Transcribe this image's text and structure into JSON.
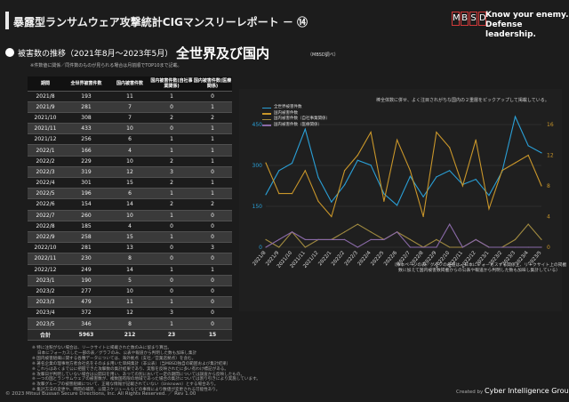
{
  "header": {
    "title": "暴露型ランサムウェア攻撃統計CIGマンスリーレポート － ⑭",
    "logo_letters": [
      "M",
      "B",
      "S",
      "D"
    ],
    "tagline_1": "Know your enemy.",
    "tagline_2": "Defense leadership."
  },
  "section": {
    "heading": "被害数の推移（2021年8月～2023年5月）",
    "heading_big": "全世界及び国内",
    "heading_small": "（MBSD調べ）",
    "note": "※件数値に関係／同件数のものが見られる場合は月前順でTOP10まで記載。"
  },
  "table": {
    "headers": [
      "期間",
      "全世界被害件数",
      "国内被害件数",
      "国内被害件数(自社事業関係)",
      "国内被害件数(医療関係)"
    ],
    "rows": [
      [
        "2021/8",
        "193",
        "11",
        "1",
        "0"
      ],
      [
        "2021/9",
        "281",
        "7",
        "0",
        "1"
      ],
      [
        "2021/10",
        "308",
        "7",
        "2",
        "2"
      ],
      [
        "2021/11",
        "433",
        "10",
        "0",
        "1"
      ],
      [
        "2021/12",
        "256",
        "6",
        "1",
        "1"
      ],
      [
        "2022/1",
        "166",
        "4",
        "1",
        "1"
      ],
      [
        "2022/2",
        "229",
        "10",
        "2",
        "1"
      ],
      [
        "2022/3",
        "319",
        "12",
        "3",
        "0"
      ],
      [
        "2022/4",
        "301",
        "15",
        "2",
        "1"
      ],
      [
        "2022/5",
        "196",
        "6",
        "1",
        "1"
      ],
      [
        "2022/6",
        "154",
        "14",
        "2",
        "2"
      ],
      [
        "2022/7",
        "260",
        "10",
        "1",
        "0"
      ],
      [
        "2022/8",
        "185",
        "4",
        "0",
        "0"
      ],
      [
        "2022/9",
        "258",
        "15",
        "1",
        "0"
      ],
      [
        "2022/10",
        "281",
        "13",
        "0",
        "3"
      ],
      [
        "2022/11",
        "230",
        "8",
        "0",
        "0"
      ],
      [
        "2022/12",
        "249",
        "14",
        "1",
        "1"
      ],
      [
        "2023/1",
        "190",
        "5",
        "0",
        "0"
      ],
      [
        "2023/2",
        "277",
        "10",
        "0",
        "0"
      ],
      [
        "2023/3",
        "479",
        "11",
        "1",
        "0"
      ],
      [
        "2023/4",
        "372",
        "12",
        "3",
        "0"
      ],
      [
        "2023/5",
        "346",
        "8",
        "1",
        "0"
      ]
    ],
    "total": [
      "合計",
      "5963",
      "212",
      "23",
      "15"
    ]
  },
  "chart_data": {
    "type": "line",
    "x": [
      "2021/8",
      "2021/9",
      "2021/10",
      "2021/11",
      "2021/12",
      "2022/1",
      "2022/2",
      "2022/3",
      "2022/4",
      "2022/5",
      "2022/6",
      "2022/7",
      "2022/8",
      "2022/9",
      "2022/10",
      "2022/11",
      "2022/12",
      "2023/1",
      "2023/2",
      "2023/3",
      "2023/4",
      "2023/5"
    ],
    "series": [
      {
        "name": "全世界被害件数",
        "axis": "left",
        "color": "#2a9fd6",
        "values": [
          193,
          281,
          308,
          433,
          256,
          166,
          229,
          319,
          301,
          196,
          154,
          260,
          185,
          258,
          281,
          230,
          249,
          190,
          277,
          479,
          372,
          346
        ]
      },
      {
        "name": "国内被害件数",
        "axis": "right",
        "color": "#c9962a",
        "values": [
          11,
          7,
          7,
          10,
          6,
          4,
          10,
          12,
          15,
          6,
          14,
          10,
          4,
          15,
          13,
          8,
          14,
          5,
          10,
          11,
          12,
          8
        ]
      },
      {
        "name": "国内被害件数（自社事業関係）",
        "axis": "right",
        "color": "#a08a40",
        "values": [
          1,
          0,
          2,
          0,
          1,
          1,
          2,
          3,
          2,
          1,
          2,
          1,
          0,
          1,
          0,
          0,
          1,
          0,
          0,
          1,
          3,
          1
        ]
      },
      {
        "name": "国内被害件数（医療関係）",
        "axis": "right",
        "color": "#8a6aa8",
        "values": [
          0,
          1,
          2,
          1,
          1,
          1,
          1,
          0,
          1,
          1,
          2,
          0,
          0,
          0,
          3,
          0,
          1,
          0,
          0,
          0,
          0,
          0
        ]
      }
    ],
    "ylim_left": [
      0,
      450
    ],
    "yticks_left": [
      "0",
      "150",
      "300",
      "450"
    ],
    "ylim_right": [
      0,
      16
    ],
    "yticks_right": [
      "0",
      "4",
      "8",
      "12",
      "16"
    ],
    "grid": true,
    "legend": "top-left"
  },
  "chart_note": "棒全体数に併せ、よく注目されがちな国内の２重層をピックアップして掲載している。",
  "right_note": "（棒本ページの表／グラフの各値は、日本にフォーカスする関係上、リークサイト上の掲載数に加えて国内被害数掲載からの公表や報道から判明した数も加味し集計している）",
  "footnotes": [
    "※ 特に注釈がない場合は、リークサイトに掲載された数のみに留まり算出。",
    "　 日本にフォーカスした一部の表／グラフのみ、公表や報道から判明した数も加味し集計",
    "※ 国内被害組織に関する各種データについては、海外拠点（支社／営業店拠点）を含む。",
    "※ 著名企業の理事地方者会社名をそのまま用いた単純集計（非公表）（当MBSD独自の範囲および集計結果）",
    "※ これらはあくまで公に把握できた攻撃数の集計結果であり、実態を反映されたに多い有わけ標記がある。",
    "※ 攻撃日が判明していない場合は公開日を用い、あつての別において一定の期間については調査から反映したもの。",
    "※ 一つの国とランサムウェアの被害数が、複数国有限の地域であった場合の集計については割り引きにより実施しています。",
    "※ 攻撃グループの被害組織について、正確な情報が記載されていない（Unknown）とする場合あり。",
    "※ 集計方法の変更や、時間の補完、公開スケジュールなどの事情により数値が変更される可能性あり。"
  ],
  "copyright": "© 2023 Mitsui Bussan Secure Directions, Inc. All Rights Reserved. ／ Rev 1.00",
  "created_prefix": "Created by",
  "created_org": "Cyber Intelligence Group"
}
